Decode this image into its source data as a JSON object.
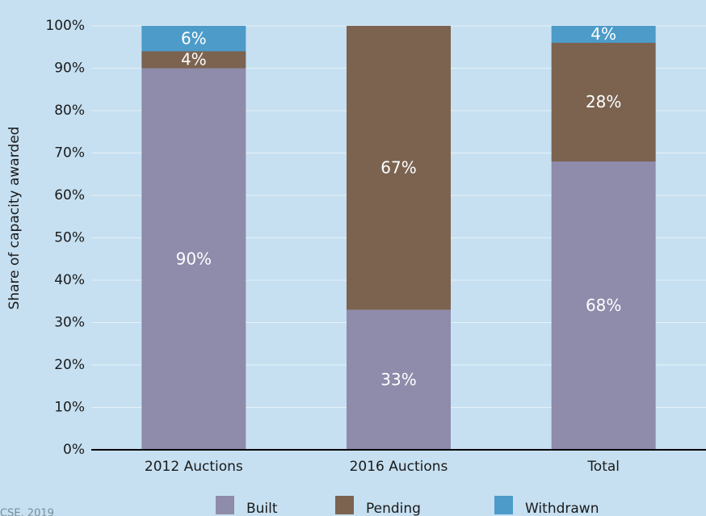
{
  "chart_data": {
    "type": "stacked_bar",
    "y_label": "Share of capacity awarded",
    "categories": [
      "2012 Auctions",
      "2016 Auctions",
      "Total"
    ],
    "series": [
      {
        "name": "Built",
        "color": "#8f8bab",
        "values": [
          90,
          33,
          68
        ],
        "value_labels": [
          "90%",
          "33%",
          "68%"
        ]
      },
      {
        "name": "Pending",
        "color": "#7b6350",
        "values": [
          4,
          67,
          28
        ],
        "value_labels": [
          "4%",
          "67%",
          "28%"
        ]
      },
      {
        "name": "Withdrawn",
        "color": "#4c9bc9",
        "values": [
          6,
          0,
          4
        ],
        "value_labels": [
          "6%",
          null,
          "4%"
        ]
      }
    ],
    "ylim": [
      0,
      100
    ],
    "yticks": [
      {
        "value": 0,
        "label": "0%"
      },
      {
        "value": 10,
        "label": "10%"
      },
      {
        "value": 20,
        "label": "20%"
      },
      {
        "value": 30,
        "label": "30%"
      },
      {
        "value": 40,
        "label": "40%"
      },
      {
        "value": 50,
        "label": "50%"
      },
      {
        "value": 60,
        "label": "60%"
      },
      {
        "value": 70,
        "label": "70%"
      },
      {
        "value": 80,
        "label": "80%"
      },
      {
        "value": 90,
        "label": "90%"
      },
      {
        "value": 100,
        "label": "100%"
      }
    ],
    "grid": true,
    "legend": "bottom",
    "source": "CSE, 2019"
  }
}
